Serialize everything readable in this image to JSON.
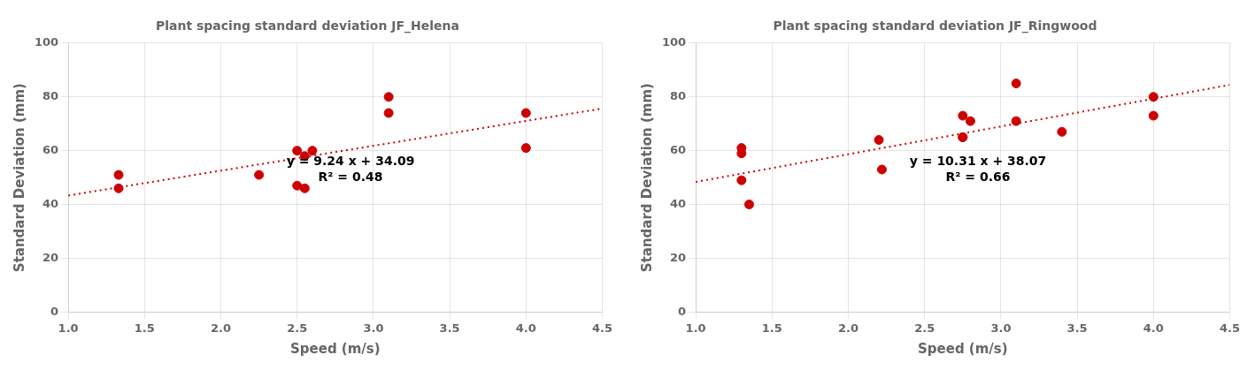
{
  "chart_data": [
    {
      "type": "scatter",
      "title": "Plant spacing standard deviation JF_Helena",
      "x_label": "Speed (m/s)",
      "y_label": "Standard Deviation (mm)",
      "xlim": [
        1.0,
        4.5
      ],
      "ylim": [
        0,
        100
      ],
      "xticks": [
        {
          "value": 1.0,
          "label": "1.0"
        },
        1.5,
        {
          "value": 2.0,
          "label": "2.0"
        },
        2.5,
        {
          "value": 3.0,
          "label": "3.0"
        },
        3.5,
        {
          "value": 4.0,
          "label": "4.0"
        },
        4.5
      ],
      "yticks": [
        0,
        20,
        40,
        60,
        80,
        100
      ],
      "grid": true,
      "series": [
        {
          "type": "scatter",
          "color": "#cc0000",
          "marker": "circle",
          "x": [
            1.33,
            1.33,
            2.25,
            2.5,
            2.5,
            2.55,
            2.55,
            2.6,
            3.1,
            3.1,
            4.0,
            4.0
          ],
          "values": [
            51,
            46,
            51,
            60,
            47,
            58,
            46,
            60,
            80,
            74,
            74,
            61
          ]
        },
        {
          "type": "line",
          "color": "#cc0000",
          "line_style": "dotted",
          "x": [
            1.0,
            4.5
          ],
          "values": [
            43.33,
            75.67
          ]
        }
      ],
      "annotations": [
        {
          "text": "y = 9.24 x + 34.09\nR² = 0.48",
          "x": 2.85,
          "y": 53
        }
      ]
    },
    {
      "type": "scatter",
      "title": "Plant spacing standard deviation JF_Ringwood",
      "x_label": "Speed (m/s)",
      "y_label": "Standard Deviation (mm)",
      "xlim": [
        1.0,
        4.5
      ],
      "ylim": [
        0,
        100
      ],
      "xticks": [
        {
          "value": 1.0,
          "label": "1.0"
        },
        1.5,
        {
          "value": 2.0,
          "label": "2.0"
        },
        2.5,
        {
          "value": 3.0,
          "label": "3.0"
        },
        3.5,
        {
          "value": 4.0,
          "label": "4.0"
        },
        4.5
      ],
      "yticks": [
        0,
        20,
        40,
        60,
        80,
        100
      ],
      "grid": true,
      "series": [
        {
          "type": "scatter",
          "color": "#cc0000",
          "marker": "circle",
          "x": [
            1.3,
            1.3,
            1.3,
            1.35,
            2.2,
            2.22,
            2.75,
            2.75,
            2.75,
            2.8,
            3.1,
            3.1,
            3.4,
            4.0,
            4.0
          ],
          "values": [
            61,
            59,
            49,
            40,
            64,
            53,
            73,
            65,
            65,
            71,
            85,
            71,
            67,
            80,
            73
          ]
        },
        {
          "type": "line",
          "color": "#cc0000",
          "line_style": "dotted",
          "x": [
            1.0,
            4.5
          ],
          "values": [
            48.38,
            84.465
          ]
        }
      ],
      "annotations": [
        {
          "text": "y = 10.31 x + 38.07\nR² = 0.66",
          "x": 2.85,
          "y": 53
        }
      ]
    }
  ]
}
